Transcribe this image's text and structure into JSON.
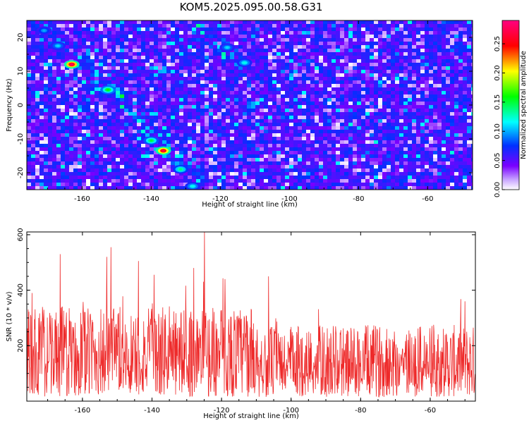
{
  "title": "KOM5.2025.095.00.58.G31",
  "chart_data": [
    {
      "type": "heatmap",
      "xlabel": "Height of straight line (km)",
      "ylabel": "Frequency (Hz)",
      "xlim": [
        -176,
        -47
      ],
      "ylim": [
        -25,
        25
      ],
      "x_ticks": [
        -160,
        -140,
        -120,
        -100,
        -80,
        -60
      ],
      "y_ticks": [
        -20,
        -10,
        0,
        10,
        20
      ],
      "colorbar": {
        "label": "Normalized spectral amplitude",
        "range": [
          0,
          0.29
        ],
        "ticks": [
          "0.00",
          "0.05",
          "0.10",
          "0.15",
          "0.20",
          "0.25"
        ],
        "colors": [
          "#ffffff",
          "#7a00ff",
          "#0030ff",
          "#00ffff",
          "#00ff00",
          "#ffff00",
          "#ff0000",
          "#ff0080"
        ]
      },
      "ridges": [
        {
          "x": [
            -170,
            -165,
            -160,
            -155,
            -150,
            -145,
            -140,
            -135,
            -130,
            -126
          ],
          "y": [
            23,
            18,
            13,
            8,
            3,
            -2,
            -8,
            -13,
            -18,
            -23
          ]
        },
        {
          "x": [
            -125,
            -120,
            -115,
            -110
          ],
          "y": [
            23,
            18,
            13,
            9
          ]
        }
      ],
      "peaks": [
        {
          "x": -163,
          "y": 12,
          "value": 0.28
        },
        {
          "x": -136.5,
          "y": -13.5,
          "value": 0.27
        },
        {
          "x": -152.5,
          "y": 4.5,
          "value": 0.16
        },
        {
          "x": -140,
          "y": -10.5,
          "value": 0.15
        },
        {
          "x": -131.5,
          "y": -19,
          "value": 0.14
        },
        {
          "x": -128,
          "y": -24,
          "value": 0.12
        },
        {
          "x": -118,
          "y": 17,
          "value": 0.11
        },
        {
          "x": -113,
          "y": 12.5,
          "value": 0.12
        },
        {
          "x": -167,
          "y": 17.5,
          "value": 0.11
        },
        {
          "x": -171,
          "y": 22,
          "value": 0.1
        }
      ]
    },
    {
      "type": "line",
      "xlabel": "Height of straight line (km)",
      "ylabel": "SNR (10 * v/v)",
      "xlim": [
        -176,
        -47
      ],
      "ylim": [
        0,
        610
      ],
      "x_ticks": [
        -160,
        -140,
        -120,
        -100,
        -80,
        -60
      ],
      "y_ticks": [
        200,
        400,
        600
      ],
      "color": "#ee2a2a",
      "series_summary": {
        "baseline": 120,
        "spread": 110,
        "x_step": 0.1
      },
      "notable_spikes": [
        {
          "x": -124.9,
          "y": 610
        },
        {
          "x": -151.8,
          "y": 555
        },
        {
          "x": -153.0,
          "y": 520
        },
        {
          "x": -166.4,
          "y": 530
        },
        {
          "x": -143.9,
          "y": 505
        },
        {
          "x": -128.0,
          "y": 480
        },
        {
          "x": -106.5,
          "y": 450
        },
        {
          "x": -174.5,
          "y": 390
        },
        {
          "x": -119.0,
          "y": 440
        },
        {
          "x": -50.0,
          "y": 360
        }
      ]
    }
  ]
}
